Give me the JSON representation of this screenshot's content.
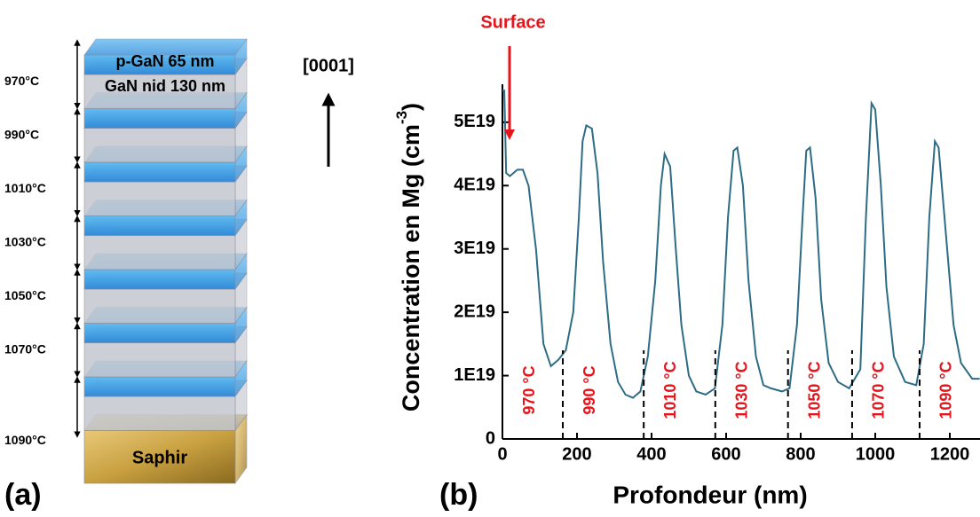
{
  "diagram": {
    "panel": "(a)",
    "top_layer": "p-GaN 65 nm",
    "second_layer": "GaN nid 130 nm",
    "substrate": "Saphir",
    "direction": "[0001]",
    "temperatures": [
      "970°C",
      "990°C",
      "1010°C",
      "1030°C",
      "1050°C",
      "1070°C",
      "1090°C"
    ]
  },
  "chart_data": {
    "type": "line",
    "panel": "(b)",
    "xlabel": "Profondeur (nm)",
    "ylabel": "Concentration en Mg (cm",
    "ylabel_sup": "-3",
    "ylabel_end": ")",
    "annotation": "Surface",
    "color": "#2e6c86",
    "marker_color": "#e8141c",
    "x": [
      0,
      5,
      10,
      20,
      40,
      55,
      70,
      90,
      110,
      130,
      150,
      170,
      190,
      205,
      215,
      225,
      240,
      255,
      270,
      290,
      310,
      330,
      350,
      370,
      390,
      410,
      425,
      435,
      450,
      465,
      480,
      500,
      520,
      545,
      570,
      590,
      605,
      620,
      630,
      645,
      660,
      680,
      700,
      720,
      750,
      770,
      790,
      805,
      815,
      825,
      840,
      855,
      875,
      900,
      930,
      960,
      975,
      990,
      1000,
      1015,
      1030,
      1050,
      1080,
      1110,
      1130,
      1145,
      1160,
      1170,
      1190,
      1210,
      1230,
      1260,
      1280
    ],
    "values": [
      5.5e+19,
      5.5e+19,
      4.2e+19,
      4.15e+19,
      4.25e+19,
      4.25e+19,
      4e+19,
      3e+19,
      1.5e+19,
      1.15e+19,
      1.25e+19,
      1.4e+19,
      2e+19,
      3.5e+19,
      4.7e+19,
      4.95e+19,
      4.9e+19,
      4.2e+19,
      2.8e+19,
      1.5e+19,
      9e+18,
      7e+18,
      6.5e+18,
      7.5e+18,
      1.3e+19,
      2.5e+19,
      4e+19,
      4.5e+19,
      4.3e+19,
      3e+19,
      1.8e+19,
      1e+19,
      7.5e+18,
      7e+18,
      8e+18,
      1.8e+19,
      3.5e+19,
      4.55e+19,
      4.6e+19,
      4e+19,
      2.5e+19,
      1.3e+19,
      8.5e+18,
      8e+18,
      7.5e+18,
      8e+18,
      1.8e+19,
      3.5e+19,
      4.55e+19,
      4.6e+19,
      3.8e+19,
      2.2e+19,
      1.2e+19,
      9e+18,
      8e+18,
      1.1e+19,
      3.5e+19,
      5.3e+19,
      5.2e+19,
      4e+19,
      2.4e+19,
      1.3e+19,
      9e+18,
      8.5e+18,
      1.5e+19,
      3.5e+19,
      4.7e+19,
      4.6e+19,
      3.2e+19,
      1.8e+19,
      1.2e+19,
      9.5e+18,
      9.5e+18
    ],
    "boundaries": [
      162,
      379,
      571,
      766,
      938,
      1119
    ],
    "annotations": [
      "970 °C",
      "990 °C",
      "1010 °C",
      "1030 °C",
      "1050 °C",
      "1070 °C",
      "1090 °C"
    ],
    "xlim": [
      0,
      1281
    ],
    "ylim": [
      0,
      5.6e+19
    ],
    "xticks": [
      0,
      200,
      400,
      600,
      800,
      1000,
      1200
    ],
    "yticks": [
      0,
      {
        "value": 1e+19,
        "label": "1E19"
      },
      {
        "value": 2e+19,
        "label": "2E19"
      },
      {
        "value": 3e+19,
        "label": "3E19"
      },
      {
        "value": 4e+19,
        "label": "4E19"
      },
      {
        "value": 5e+19,
        "label": "5E19"
      }
    ]
  }
}
